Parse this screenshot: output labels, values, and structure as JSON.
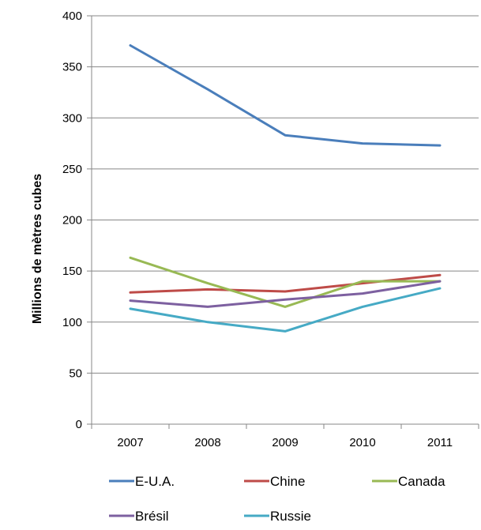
{
  "chart_data": {
    "type": "line",
    "title": "",
    "xlabel": "",
    "ylabel": "Millions de mètres cubes",
    "categories": [
      "2007",
      "2008",
      "2009",
      "2010",
      "2011"
    ],
    "ylim": [
      0,
      400
    ],
    "yticks": [
      "0",
      "50",
      "100",
      "150",
      "200",
      "250",
      "300",
      "350",
      "400"
    ],
    "grid": true,
    "legend_position": "bottom",
    "series": [
      {
        "name": "E-U.A.",
        "color": "#4A7EBB",
        "values": [
          371,
          328,
          283,
          275,
          273
        ]
      },
      {
        "name": "Chine",
        "color": "#BE4B48",
        "values": [
          129,
          132,
          130,
          138,
          146
        ]
      },
      {
        "name": "Canada",
        "color": "#98B954",
        "values": [
          163,
          138,
          115,
          140,
          140
        ]
      },
      {
        "name": "Brésil",
        "color": "#7D60A0",
        "values": [
          121,
          115,
          122,
          128,
          140
        ]
      },
      {
        "name": "Russie",
        "color": "#46AAC5",
        "values": [
          113,
          100,
          91,
          115,
          133
        ]
      }
    ]
  }
}
